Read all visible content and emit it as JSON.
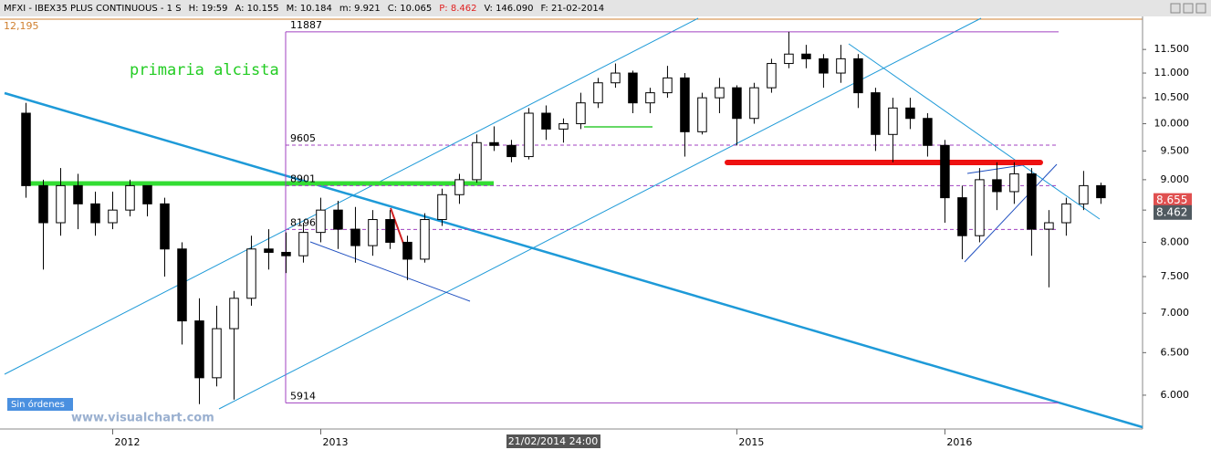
{
  "chart_data": {
    "type": "candlestick",
    "header_fields": [
      "MFXI - IBEX35 PLUS CONTINUOUS - 1 S",
      "H: 19:59",
      "A: 10.155",
      "M: 10.184",
      "m: 9.921",
      "C: 10.065",
      "P: 8.462",
      "V: 146.090",
      "F: 21-02-2014"
    ],
    "scale_top_label": "12,195",
    "annotation": "primaria alcista",
    "button": "Sin órdenes",
    "watermark": "www.visualchart.com",
    "cursor_label": "21/02/2014 24:00",
    "log_scale": true,
    "ylim": [
      5630,
      12195
    ],
    "xlim": [
      -1.5,
      64.4
    ],
    "yticks": [
      {
        "value": 11500,
        "label": "11.500"
      },
      {
        "value": 11000,
        "label": "11.000"
      },
      {
        "value": 10500,
        "label": "10.500"
      },
      {
        "value": 10000,
        "label": "10.000"
      },
      {
        "value": 9500,
        "label": "9.500"
      },
      {
        "value": 9000,
        "label": "9.000"
      },
      {
        "value": 8500,
        "label": "8.500"
      },
      {
        "value": 8000,
        "label": "8.000"
      },
      {
        "value": 7500,
        "label": "7.500"
      },
      {
        "value": 7000,
        "label": "7.000"
      },
      {
        "value": 6500,
        "label": "6.500"
      },
      {
        "value": 6000,
        "label": "6.000"
      }
    ],
    "xticks": [
      {
        "value": 5,
        "label": "2012"
      },
      {
        "value": 17,
        "label": "2013"
      },
      {
        "value": 41,
        "label": "2015"
      },
      {
        "value": 53,
        "label": "2016"
      }
    ],
    "levels": [
      11887,
      9605,
      8901,
      8196,
      5914
    ],
    "level_color": "#a040c0",
    "price_tags": [
      {
        "value": 8655,
        "label": "8.655",
        "color": "#e05050"
      },
      {
        "value": 8462,
        "label": "8.462",
        "color": "#505a60"
      }
    ],
    "up_color": "#ffffff",
    "down_color": "#000000",
    "categories": [
      null,
      null,
      null,
      null,
      null,
      null,
      null,
      null,
      null,
      null,
      null,
      null,
      null,
      null,
      null,
      null,
      null,
      null,
      null,
      null,
      null,
      null,
      null,
      null,
      null,
      null,
      null,
      null,
      null,
      null,
      null,
      null,
      null,
      null,
      null,
      null,
      null,
      null,
      null,
      null,
      null,
      null,
      null,
      null,
      null,
      null,
      null,
      null,
      null,
      null,
      null,
      null,
      null,
      null,
      null,
      null,
      null,
      null,
      null,
      null,
      null,
      null,
      null
    ],
    "open": [
      10200,
      8900,
      8300,
      8900,
      8600,
      8300,
      8500,
      8900,
      8600,
      7900,
      6900,
      6200,
      6800,
      7200,
      7900,
      7850,
      7800,
      8150,
      8500,
      8200,
      7950,
      8350,
      8000,
      7750,
      8350,
      8750,
      9000,
      9650,
      9600,
      9400,
      10200,
      9900,
      10000,
      10400,
      10800,
      11000,
      10400,
      10600,
      10900,
      9850,
      10500,
      10700,
      10100,
      10700,
      11200,
      11400,
      11300,
      11000,
      11300,
      10600,
      9800,
      10300,
      10100,
      9600,
      8700,
      8100,
      9000,
      8800,
      9100,
      8200,
      8300,
      8600,
      8900
    ],
    "high": [
      10400,
      9000,
      9200,
      9100,
      8800,
      8800,
      9000,
      8900,
      8700,
      8000,
      7200,
      7100,
      7300,
      8100,
      8200,
      8150,
      8300,
      8700,
      8650,
      8550,
      8500,
      8500,
      8100,
      8450,
      8850,
      9100,
      9800,
      9950,
      9700,
      10300,
      10350,
      10100,
      10600,
      10900,
      11200,
      11050,
      10700,
      11150,
      11000,
      10600,
      10900,
      10750,
      10800,
      11300,
      11887,
      11600,
      11400,
      11600,
      11400,
      10700,
      10500,
      10500,
      10200,
      9700,
      8900,
      9200,
      9300,
      9300,
      9200,
      8500,
      8700,
      9150,
      8950
    ],
    "low": [
      8700,
      7600,
      8100,
      8200,
      8100,
      8200,
      8400,
      8400,
      7500,
      6600,
      5900,
      6100,
      5950,
      7100,
      7600,
      7550,
      7700,
      8000,
      7900,
      7700,
      7800,
      7900,
      7450,
      7700,
      8250,
      8600,
      8950,
      9500,
      9300,
      9350,
      9700,
      9650,
      9900,
      10300,
      10700,
      10200,
      10200,
      10500,
      9400,
      9800,
      10200,
      9600,
      10000,
      10600,
      11100,
      11100,
      10700,
      10800,
      10300,
      9500,
      9300,
      9900,
      9400,
      8300,
      7750,
      8000,
      8500,
      8600,
      7800,
      7350,
      8100,
      8500,
      8600
    ],
    "close": [
      8900,
      8300,
      8900,
      8600,
      8300,
      8500,
      8900,
      8600,
      7900,
      6900,
      6200,
      6800,
      7200,
      7900,
      7850,
      7800,
      8150,
      8500,
      8200,
      7950,
      8350,
      8000,
      7750,
      8350,
      8750,
      9000,
      9650,
      9600,
      9400,
      10200,
      9900,
      10000,
      10400,
      10800,
      11000,
      10400,
      10600,
      10900,
      9850,
      10500,
      10700,
      10100,
      10700,
      11200,
      11400,
      11300,
      11000,
      11300,
      10600,
      9800,
      10300,
      10100,
      9600,
      8700,
      8100,
      9000,
      8800,
      9100,
      8200,
      8300,
      8600,
      8900,
      8700
    ]
  }
}
